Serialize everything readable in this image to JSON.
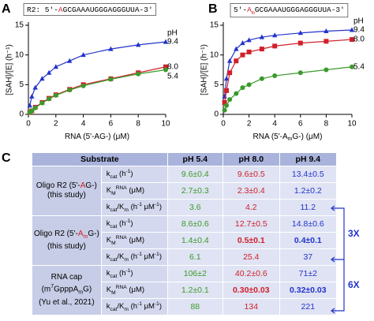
{
  "chart_data": [
    {
      "type": "line",
      "panel": "A",
      "sequence": [
        {
          "text": "R2: 5'-"
        },
        {
          "text": "A",
          "color": "#d0202a"
        },
        {
          "text": "GCGAAAUGGGAGGGUUA-3'"
        }
      ],
      "ylabel": "[SAH]/[E] (h⁻¹)",
      "xlabel": [
        {
          "text": "RNA (5'-AG-) (μM)"
        }
      ],
      "legend_title": "pH",
      "x": [
        0.1,
        0.25,
        0.5,
        1,
        1.5,
        2,
        3,
        4,
        6,
        8,
        10
      ],
      "series": [
        {
          "name": "9.4",
          "color": "#2233cc",
          "marker": "triangle",
          "values": [
            1.5,
            3,
            4.5,
            6,
            7,
            8,
            9,
            10,
            11,
            11.7,
            12.2
          ]
        },
        {
          "name": "8.0",
          "color": "#d0202a",
          "marker": "square",
          "values": [
            0.3,
            0.6,
            1.2,
            2,
            2.7,
            3.3,
            4.2,
            5,
            6,
            7,
            8
          ]
        },
        {
          "name": "5.4",
          "color": "#3a9a2a",
          "marker": "circle",
          "values": [
            0.3,
            0.6,
            1.1,
            1.9,
            2.6,
            3.2,
            4.1,
            4.8,
            5.9,
            6.8,
            7.5
          ]
        }
      ],
      "xlim": [
        0,
        10
      ],
      "ylim": [
        0,
        15
      ],
      "xticks": [
        0,
        2,
        4,
        6,
        8,
        10
      ],
      "yticks": [
        0,
        5,
        10,
        15
      ]
    },
    {
      "type": "line",
      "panel": "B",
      "sequence": [
        {
          "text": "5'-"
        },
        {
          "text": "A",
          "color": "#d0202a"
        },
        {
          "text": "m",
          "color": "#d0202a",
          "sub": true
        },
        {
          "text": "GCGAAAUGGGAGGGUUA-3'"
        }
      ],
      "ylabel": "[SAH]/[E] (h⁻¹)",
      "xlabel": [
        {
          "text": "RNA (5'-A"
        },
        {
          "text": "m",
          "sub": true
        },
        {
          "text": "G-) (μM)"
        }
      ],
      "legend_title": "pH",
      "x": [
        0.1,
        0.25,
        0.5,
        1,
        1.5,
        2,
        3,
        4,
        6,
        8,
        10
      ],
      "series": [
        {
          "name": "9.4",
          "color": "#2233cc",
          "marker": "triangle",
          "values": [
            3,
            6,
            9,
            11,
            12,
            12.5,
            13,
            13.3,
            13.7,
            14,
            14.2
          ]
        },
        {
          "name": "8.0",
          "color": "#d0202a",
          "marker": "square",
          "values": [
            2,
            4,
            7,
            9,
            10,
            10.5,
            11,
            11.5,
            12,
            12.3,
            12.6
          ]
        },
        {
          "name": "5.4",
          "color": "#3a9a2a",
          "marker": "circle",
          "values": [
            0.7,
            1.5,
            2.5,
            3.5,
            4.5,
            5,
            6,
            6.5,
            7,
            7.5,
            8
          ]
        }
      ],
      "xlim": [
        0,
        10
      ],
      "ylim": [
        0,
        15
      ],
      "xticks": [
        0,
        2,
        4,
        6,
        8,
        10
      ],
      "yticks": [
        0,
        5,
        10,
        15
      ]
    }
  ],
  "table": {
    "panel": "C",
    "header": [
      "Substrate",
      "pH 5.4",
      "pH 8.0",
      "pH 9.4"
    ],
    "column_colors": [
      "#3a9a2a",
      "#d0202a",
      "#2233cc"
    ],
    "params": [
      [
        {
          "text": "k"
        },
        {
          "text": "cat",
          "sub": true
        },
        {
          "text": " (h"
        },
        {
          "text": "-1",
          "sup": true
        },
        {
          "text": ")"
        }
      ],
      [
        {
          "text": "K"
        },
        {
          "text": "M",
          "sub": true
        },
        {
          "text": "RNA",
          "sup": true
        },
        {
          "text": " (μM)"
        }
      ],
      [
        {
          "text": "k"
        },
        {
          "text": "cat",
          "sub": true
        },
        {
          "text": "/K"
        },
        {
          "text": "m",
          "sub": true
        },
        {
          "text": " (h"
        },
        {
          "text": "-1",
          "sup": true
        },
        {
          "text": " μM"
        },
        {
          "text": "-1",
          "sup": true
        },
        {
          "text": ")"
        }
      ]
    ],
    "groups": [
      {
        "substrate": [
          [
            {
              "text": "Oligo R2 (5'-"
            },
            {
              "text": "A",
              "color": "#d0202a"
            },
            {
              "text": "G-)"
            }
          ],
          [
            {
              "text": "(this study)"
            }
          ]
        ],
        "rows": [
          [
            {
              "text": "9.6±0.4"
            },
            {
              "text": "9.6±0.5"
            },
            {
              "text": "13.4±0.5"
            }
          ],
          [
            {
              "text": "2.7±0.3"
            },
            {
              "text": "2.3±0.4"
            },
            {
              "text": "1.2±0.2"
            }
          ],
          [
            {
              "text": "3.6"
            },
            {
              "text": "4.2"
            },
            {
              "text": "11.2"
            }
          ]
        ]
      },
      {
        "substrate": [
          [
            {
              "text": "Oligo R2 (5'-"
            },
            {
              "text": "A",
              "color": "#d0202a"
            },
            {
              "text": "m",
              "color": "#d0202a",
              "sub": true
            },
            {
              "text": "G-)"
            }
          ],
          [
            {
              "text": "(this study)"
            }
          ]
        ],
        "rows": [
          [
            {
              "text": "8.6±0.6"
            },
            {
              "text": "12.7±0.5"
            },
            {
              "text": "14.8±0.6"
            }
          ],
          [
            {
              "text": "1.4±0.4"
            },
            {
              "text": "0.5±0.1",
              "bold": true
            },
            {
              "text": "0.4±0.1",
              "bold": true
            }
          ],
          [
            {
              "text": "6.1"
            },
            {
              "text": "25.4"
            },
            {
              "text": "37"
            }
          ]
        ]
      },
      {
        "substrate": [
          [
            {
              "text": "RNA cap"
            }
          ],
          [
            {
              "text": "(m"
            },
            {
              "text": "7",
              "sup": true
            },
            {
              "text": "GpppA"
            },
            {
              "text": "m",
              "sub": true
            },
            {
              "text": "G)"
            }
          ],
          [
            {
              "text": "(Yu et al., 2021)"
            }
          ]
        ],
        "rows": [
          [
            {
              "text": "106±2"
            },
            {
              "text": "40.2±0.6"
            },
            {
              "text": "71±2"
            }
          ],
          [
            {
              "text": "1.2±0.1"
            },
            {
              "text": "0.30±0.03",
              "bold": true
            },
            {
              "text": "0.32±0.03",
              "bold": true
            }
          ],
          [
            {
              "text": "88"
            },
            {
              "text": "134"
            },
            {
              "text": "221"
            }
          ]
        ]
      }
    ],
    "fold_labels": [
      "3X",
      "6X"
    ]
  }
}
